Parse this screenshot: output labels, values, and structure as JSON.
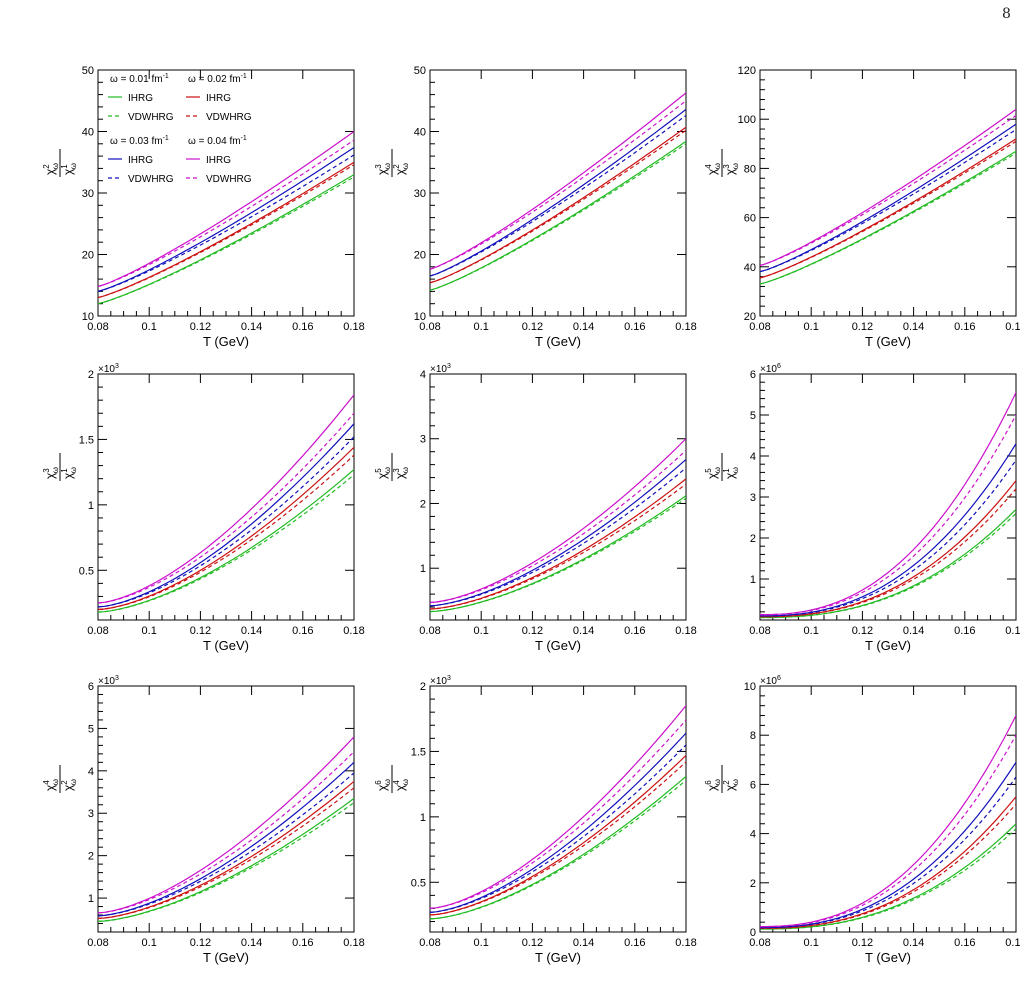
{
  "page_number": "8",
  "legend": {
    "groups": [
      {
        "omega": "ω = 0.01 fm",
        "power": "-1",
        "ihrg": "IHRG",
        "vdwhrg": "VDWHRG",
        "color": "#22bb22"
      },
      {
        "omega": "ω = 0.02 fm",
        "power": "-1",
        "ihrg": "IHRG",
        "vdwhrg": "VDWHRG",
        "color": "#cc1111"
      },
      {
        "omega": "ω = 0.03 fm",
        "power": "-1",
        "ihrg": "IHRG",
        "vdwhrg": "VDWHRG",
        "color": "#1111bb"
      },
      {
        "omega": "ω = 0.04 fm",
        "power": "-1",
        "ihrg": "IHRG",
        "vdwhrg": "VDWHRG",
        "color": "#cc11cc"
      }
    ]
  },
  "chart_data": [
    {
      "type": "line",
      "xlabel": "T (GeV)",
      "xlim": [
        0.08,
        0.18
      ],
      "x": [
        0.08,
        0.18
      ],
      "xticks": [
        "0.08",
        "0.1",
        "0.12",
        "0.14",
        "0.16",
        "0.18"
      ],
      "ylabel": {
        "num": "χ",
        "num_sup": "2",
        "den": "χ",
        "den_sup": "1",
        "sub": "ω"
      },
      "ylim": [
        10,
        50
      ],
      "yticks": [
        "10",
        "20",
        "30",
        "40",
        "50"
      ],
      "exponent": "",
      "series": [
        {
          "color": "#22bb22",
          "ihrg": [
            12.0,
            33.0
          ],
          "vdwhrg": [
            12.0,
            32.6
          ]
        },
        {
          "color": "#cc1111",
          "ihrg": [
            13.0,
            35.0
          ],
          "vdwhrg": [
            13.0,
            34.6
          ]
        },
        {
          "color": "#1111bb",
          "ihrg": [
            14.0,
            37.4
          ],
          "vdwhrg": [
            14.0,
            36.2
          ]
        },
        {
          "color": "#cc11cc",
          "ihrg": [
            14.8,
            40.0
          ],
          "vdwhrg": [
            14.8,
            38.6
          ]
        }
      ]
    },
    {
      "type": "line",
      "xlabel": "T (GeV)",
      "xlim": [
        0.08,
        0.18
      ],
      "x": [
        0.08,
        0.18
      ],
      "xticks": [
        "0.08",
        "0.1",
        "0.12",
        "0.14",
        "0.16",
        "0.18"
      ],
      "ylabel": {
        "num": "χ",
        "num_sup": "3",
        "den": "χ",
        "den_sup": "2",
        "sub": "ω"
      },
      "ylim": [
        10,
        50
      ],
      "yticks": [
        "10",
        "20",
        "30",
        "40",
        "50"
      ],
      "exponent": "",
      "series": [
        {
          "color": "#22bb22",
          "ihrg": [
            14.2,
            38.4
          ],
          "vdwhrg": [
            14.2,
            38.0
          ]
        },
        {
          "color": "#cc1111",
          "ihrg": [
            15.4,
            40.7
          ],
          "vdwhrg": [
            15.4,
            40.2
          ]
        },
        {
          "color": "#1111bb",
          "ihrg": [
            16.5,
            43.6
          ],
          "vdwhrg": [
            16.5,
            42.6
          ]
        },
        {
          "color": "#cc11cc",
          "ihrg": [
            17.6,
            46.3
          ],
          "vdwhrg": [
            17.6,
            45.0
          ]
        }
      ]
    },
    {
      "type": "line",
      "xlabel": "T (GeV)",
      "xlim": [
        0.08,
        0.18
      ],
      "x": [
        0.08,
        0.18
      ],
      "xticks": [
        "0.08",
        "0.1",
        "0.12",
        "0.14",
        "0.16",
        "0.18"
      ],
      "ylabel": {
        "num": "χ",
        "num_sup": "4",
        "den": "χ",
        "den_sup": "3",
        "sub": "ω"
      },
      "ylim": [
        20,
        120
      ],
      "yticks": [
        "20",
        "40",
        "60",
        "80",
        "100",
        "120"
      ],
      "exponent": "",
      "series": [
        {
          "color": "#22bb22",
          "ihrg": [
            33.0,
            87.0
          ],
          "vdwhrg": [
            33.0,
            86.2
          ]
        },
        {
          "color": "#cc1111",
          "ihrg": [
            35.5,
            92.0
          ],
          "vdwhrg": [
            35.5,
            91.0
          ]
        },
        {
          "color": "#1111bb",
          "ihrg": [
            38.0,
            98.0
          ],
          "vdwhrg": [
            38.0,
            95.8
          ]
        },
        {
          "color": "#cc11cc",
          "ihrg": [
            40.5,
            104.0
          ],
          "vdwhrg": [
            40.5,
            101.5
          ]
        }
      ]
    },
    {
      "type": "line",
      "xlabel": "T (GeV)",
      "xlim": [
        0.08,
        0.18
      ],
      "x": [
        0.08,
        0.18
      ],
      "xticks": [
        "0.08",
        "0.1",
        "0.12",
        "0.14",
        "0.16",
        "0.18"
      ],
      "ylabel": {
        "num": "χ",
        "num_sup": "3",
        "den": "χ",
        "den_sup": "1",
        "sub": "ω"
      },
      "ylim": [
        0.12,
        2
      ],
      "yticks": [
        "0.5",
        "1",
        "1.5",
        "2"
      ],
      "exponent": "×10",
      "exponent_power": "3",
      "series": [
        {
          "color": "#22bb22",
          "ihrg": [
            0.18,
            1.27
          ],
          "vdwhrg": [
            0.18,
            1.23
          ]
        },
        {
          "color": "#cc1111",
          "ihrg": [
            0.2,
            1.44
          ],
          "vdwhrg": [
            0.2,
            1.38
          ]
        },
        {
          "color": "#1111bb",
          "ihrg": [
            0.22,
            1.62
          ],
          "vdwhrg": [
            0.22,
            1.52
          ]
        },
        {
          "color": "#cc11cc",
          "ihrg": [
            0.25,
            1.84
          ],
          "vdwhrg": [
            0.25,
            1.7
          ]
        }
      ]
    },
    {
      "type": "line",
      "xlabel": "T (GeV)",
      "xlim": [
        0.08,
        0.18
      ],
      "x": [
        0.08,
        0.18
      ],
      "xticks": [
        "0.08",
        "0.1",
        "0.12",
        "0.14",
        "0.16",
        "0.18"
      ],
      "ylabel": {
        "num": "χ",
        "num_sup": "5",
        "den": "χ",
        "den_sup": "3",
        "sub": "ω"
      },
      "ylim": [
        0.2,
        4
      ],
      "yticks": [
        "1",
        "2",
        "3",
        "4"
      ],
      "exponent": "×10",
      "exponent_power": "3",
      "series": [
        {
          "color": "#22bb22",
          "ihrg": [
            0.33,
            2.12
          ],
          "vdwhrg": [
            0.33,
            2.08
          ]
        },
        {
          "color": "#cc1111",
          "ihrg": [
            0.37,
            2.38
          ],
          "vdwhrg": [
            0.37,
            2.3
          ]
        },
        {
          "color": "#1111bb",
          "ihrg": [
            0.42,
            2.68
          ],
          "vdwhrg": [
            0.42,
            2.55
          ]
        },
        {
          "color": "#cc11cc",
          "ihrg": [
            0.47,
            3.0
          ],
          "vdwhrg": [
            0.47,
            2.82
          ]
        }
      ]
    },
    {
      "type": "line",
      "xlabel": "T (GeV)",
      "xlim": [
        0.08,
        0.18
      ],
      "x": [
        0.08,
        0.18
      ],
      "xticks": [
        "0.08",
        "0.1",
        "0.12",
        "0.14",
        "0.16",
        "0.18"
      ],
      "ylabel": {
        "num": "χ",
        "num_sup": "5",
        "den": "χ",
        "den_sup": "1",
        "sub": "ω"
      },
      "ylim": [
        0,
        6
      ],
      "yticks": [
        "1",
        "2",
        "3",
        "4",
        "5",
        "6"
      ],
      "exponent": "×10",
      "exponent_power": "6",
      "series": [
        {
          "color": "#22bb22",
          "ihrg": [
            0.06,
            2.7
          ],
          "vdwhrg": [
            0.06,
            2.6
          ]
        },
        {
          "color": "#cc1111",
          "ihrg": [
            0.08,
            3.4
          ],
          "vdwhrg": [
            0.08,
            3.2
          ]
        },
        {
          "color": "#1111bb",
          "ihrg": [
            0.1,
            4.3
          ],
          "vdwhrg": [
            0.1,
            3.9
          ]
        },
        {
          "color": "#cc11cc",
          "ihrg": [
            0.13,
            5.55
          ],
          "vdwhrg": [
            0.13,
            5.0
          ]
        }
      ]
    },
    {
      "type": "line",
      "xlabel": "T (GeV)",
      "xlim": [
        0.08,
        0.18
      ],
      "x": [
        0.08,
        0.18
      ],
      "xticks": [
        "0.08",
        "0.1",
        "0.12",
        "0.14",
        "0.16",
        "0.18"
      ],
      "ylabel": {
        "num": "χ",
        "num_sup": "4",
        "den": "χ",
        "den_sup": "2",
        "sub": "ω"
      },
      "ylim": [
        0.2,
        6
      ],
      "yticks": [
        "1",
        "2",
        "3",
        "4",
        "5",
        "6"
      ],
      "exponent": "×10",
      "exponent_power": "3",
      "series": [
        {
          "color": "#22bb22",
          "ihrg": [
            0.45,
            3.35
          ],
          "vdwhrg": [
            0.45,
            3.25
          ]
        },
        {
          "color": "#cc1111",
          "ihrg": [
            0.52,
            3.75
          ],
          "vdwhrg": [
            0.52,
            3.6
          ]
        },
        {
          "color": "#1111bb",
          "ihrg": [
            0.58,
            4.2
          ],
          "vdwhrg": [
            0.58,
            3.95
          ]
        },
        {
          "color": "#cc11cc",
          "ihrg": [
            0.65,
            4.8
          ],
          "vdwhrg": [
            0.65,
            4.45
          ]
        }
      ]
    },
    {
      "type": "line",
      "xlabel": "T (GeV)",
      "xlim": [
        0.08,
        0.18
      ],
      "x": [
        0.08,
        0.18
      ],
      "xticks": [
        "0.08",
        "0.1",
        "0.12",
        "0.14",
        "0.16",
        "0.18"
      ],
      "ylabel": {
        "num": "χ",
        "num_sup": "6",
        "den": "χ",
        "den_sup": "4",
        "sub": "ω"
      },
      "ylim": [
        0.12,
        2
      ],
      "yticks": [
        "0.5",
        "1",
        "1.5",
        "2"
      ],
      "exponent": "×10",
      "exponent_power": "3",
      "series": [
        {
          "color": "#22bb22",
          "ihrg": [
            0.22,
            1.31
          ],
          "vdwhrg": [
            0.22,
            1.28
          ]
        },
        {
          "color": "#cc1111",
          "ihrg": [
            0.25,
            1.47
          ],
          "vdwhrg": [
            0.25,
            1.42
          ]
        },
        {
          "color": "#1111bb",
          "ihrg": [
            0.27,
            1.64
          ],
          "vdwhrg": [
            0.27,
            1.55
          ]
        },
        {
          "color": "#cc11cc",
          "ihrg": [
            0.3,
            1.85
          ],
          "vdwhrg": [
            0.3,
            1.74
          ]
        }
      ]
    },
    {
      "type": "line",
      "xlabel": "T (GeV)",
      "xlim": [
        0.08,
        0.18
      ],
      "x": [
        0.08,
        0.18
      ],
      "xticks": [
        "0.08",
        "0.1",
        "0.12",
        "0.14",
        "0.16",
        "0.18"
      ],
      "ylabel": {
        "num": "χ",
        "num_sup": "6",
        "den": "χ",
        "den_sup": "2",
        "sub": "ω"
      },
      "ylim": [
        0,
        10
      ],
      "yticks": [
        "0",
        "2",
        "4",
        "6",
        "8",
        "10"
      ],
      "exponent": "×10",
      "exponent_power": "6",
      "series": [
        {
          "color": "#22bb22",
          "ihrg": [
            0.12,
            4.4
          ],
          "vdwhrg": [
            0.12,
            4.2
          ]
        },
        {
          "color": "#cc1111",
          "ihrg": [
            0.15,
            5.5
          ],
          "vdwhrg": [
            0.15,
            5.2
          ]
        },
        {
          "color": "#1111bb",
          "ihrg": [
            0.18,
            6.9
          ],
          "vdwhrg": [
            0.18,
            6.3
          ]
        },
        {
          "color": "#cc11cc",
          "ihrg": [
            0.22,
            8.8
          ],
          "vdwhrg": [
            0.22,
            8.0
          ]
        }
      ]
    }
  ]
}
